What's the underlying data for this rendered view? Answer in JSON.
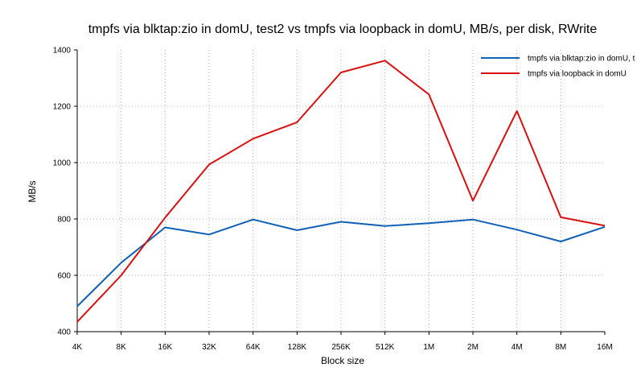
{
  "chart_data": {
    "type": "line",
    "title": "tmpfs via blktap:zio in domU, test2 vs tmpfs via loopback in domU, MB/s, per disk, RWrite",
    "xlabel": "Block size",
    "ylabel": "MB/s",
    "categories": [
      "4K",
      "8K",
      "16K",
      "32K",
      "64K",
      "128K",
      "256K",
      "512K",
      "1M",
      "2M",
      "4M",
      "8M",
      "16M"
    ],
    "ylim": [
      400,
      1400
    ],
    "yticks": [
      400,
      600,
      800,
      1000,
      1200,
      1400
    ],
    "grid": true,
    "legend_position": "top-right",
    "series": [
      {
        "name": "tmpfs via blktap:zio in domU, t",
        "color": "#1060b8",
        "values": [
          490,
          645,
          770,
          745,
          798,
          760,
          790,
          775,
          785,
          798,
          762,
          720,
          772
        ]
      },
      {
        "name": "tmpfs via loopback in domU",
        "color": "#d81010",
        "values": [
          435,
          600,
          805,
          993,
          1085,
          1143,
          1320,
          1362,
          1242,
          865,
          1183,
          806,
          776
        ]
      }
    ]
  }
}
